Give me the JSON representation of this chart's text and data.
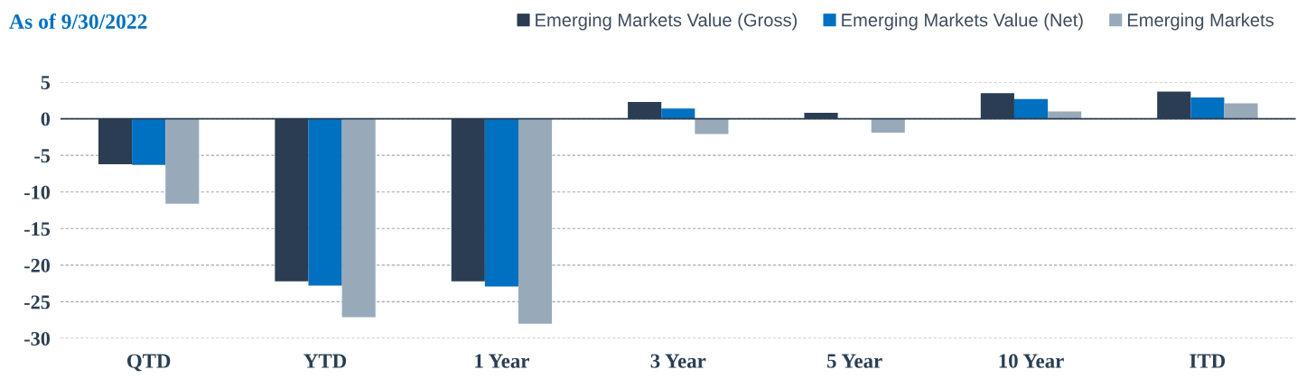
{
  "chart_data": {
    "type": "bar",
    "subtitle": "As of 9/30/2022",
    "categories": [
      "QTD",
      "YTD",
      "1 Year",
      "3 Year",
      "5 Year",
      "10 Year",
      "ITD"
    ],
    "series": [
      {
        "name": "Emerging Markets Value (Gross)",
        "color": "#2a3d52",
        "values": [
          -6.2,
          -22.2,
          -22.2,
          2.3,
          0.8,
          3.5,
          3.7
        ]
      },
      {
        "name": "Emerging Markets Value (Net)",
        "color": "#0070c0",
        "values": [
          -6.3,
          -22.8,
          -22.9,
          1.4,
          0,
          2.7,
          2.9
        ]
      },
      {
        "name": "Emerging Markets",
        "color": "#98aab9",
        "values": [
          -11.6,
          -27.1,
          -28.0,
          -2.1,
          -1.9,
          1.0,
          2.1
        ]
      }
    ],
    "ylim": [
      -30,
      5
    ],
    "yticks": [
      -30,
      -25,
      -20,
      -15,
      -10,
      -5,
      0,
      5
    ],
    "grid": "y",
    "legend": "top right",
    "ref_lines": [
      {
        "axis": "y",
        "value": 0,
        "color": "#2a3d52"
      }
    ]
  }
}
